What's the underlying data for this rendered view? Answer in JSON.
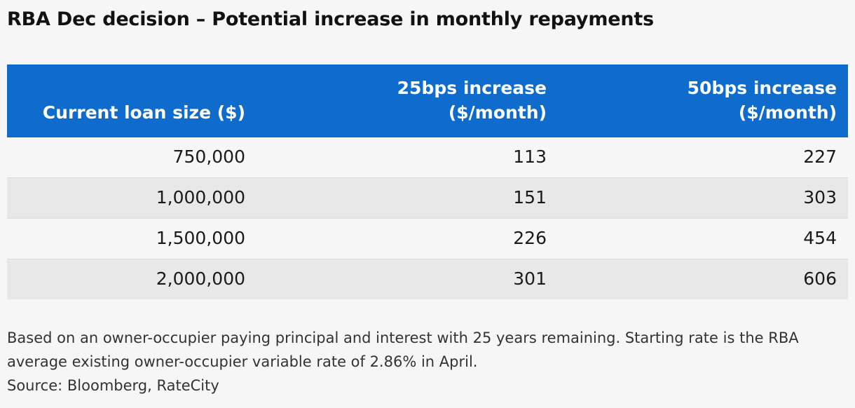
{
  "title": "RBA Dec decision – Potential increase in monthly repayments",
  "chart_data": {
    "type": "table",
    "title": "RBA Dec decision – Potential increase in monthly repayments",
    "columns": [
      {
        "line1": "",
        "line2": "Current loan size ($)"
      },
      {
        "line1": "25bps increase",
        "line2": "($/month)"
      },
      {
        "line1": "50bps increase",
        "line2": "($/month)"
      }
    ],
    "rows": [
      [
        "750,000",
        "113",
        "227"
      ],
      [
        "1,000,000",
        "151",
        "303"
      ],
      [
        "1,500,000",
        "226",
        "454"
      ],
      [
        "2,000,000",
        "301",
        "606"
      ]
    ]
  },
  "note": "Based on an owner-occupier paying principal and interest with 25 years remaining. Starting rate is the RBA average existing owner-occupier variable rate of 2.86% in April.",
  "source": "Source: Bloomberg, RateCity",
  "colors": {
    "header_bg": "#0f6ccd",
    "header_text": "#ffffff",
    "row_alt_bg": "#e8e8e8",
    "page_bg": "#f6f6f6"
  }
}
